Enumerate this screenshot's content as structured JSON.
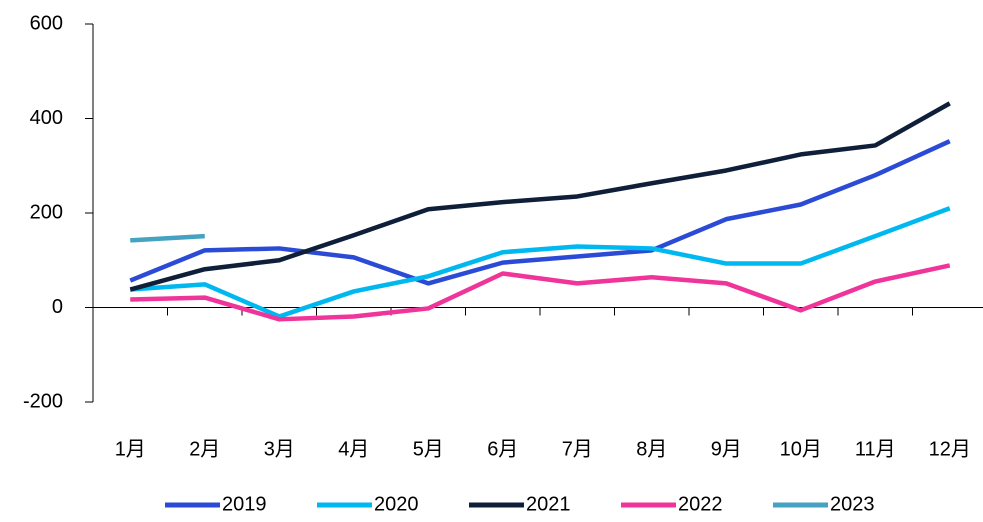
{
  "chart_data": {
    "type": "line",
    "categories": [
      "1月",
      "2月",
      "3月",
      "4月",
      "5月",
      "6月",
      "7月",
      "8月",
      "9月",
      "10月",
      "11月",
      "12月"
    ],
    "series": [
      {
        "name": "2019",
        "color": "#2b4bd6",
        "values": [
          57,
          121,
          125,
          106,
          51,
          95,
          108,
          121,
          187,
          218,
          280,
          352
        ]
      },
      {
        "name": "2020",
        "color": "#00b8f0",
        "values": [
          38,
          49,
          -19,
          34,
          66,
          117,
          129,
          125,
          93,
          93,
          151,
          210
        ]
      },
      {
        "name": "2021",
        "color": "#0f1f3a",
        "values": [
          38,
          81,
          100,
          153,
          208,
          223,
          235,
          263,
          290,
          324,
          343,
          432
        ]
      },
      {
        "name": "2022",
        "color": "#f0359a",
        "values": [
          17,
          21,
          -25,
          -19,
          -2,
          72,
          51,
          64,
          51,
          -6,
          55,
          89
        ]
      },
      {
        "name": "2023",
        "color": "#45a2c0",
        "values": [
          142,
          151,
          null,
          null,
          null,
          null,
          null,
          null,
          null,
          null,
          null,
          null
        ]
      }
    ],
    "ylim": [
      -200,
      600
    ],
    "yticks": [
      -200,
      0,
      200,
      400,
      600
    ],
    "legend": "bottom"
  }
}
